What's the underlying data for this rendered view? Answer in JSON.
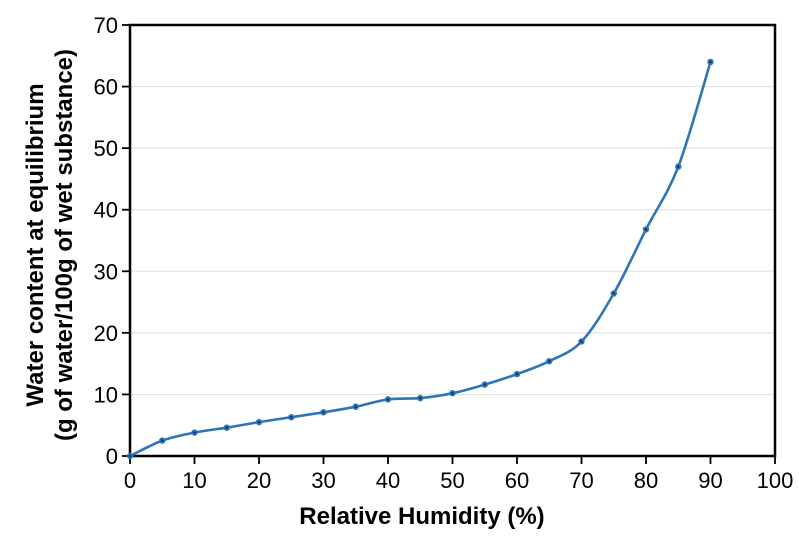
{
  "chart_data": {
    "type": "line",
    "title": "",
    "xlabel": "Relative Humidity (%)",
    "ylabel_line1": "Water content at equilibrium",
    "ylabel_line2": "(g of water/100g of wet substance)",
    "x": [
      0,
      5,
      10,
      15,
      20,
      25,
      30,
      35,
      40,
      45,
      50,
      55,
      60,
      65,
      70,
      75,
      80,
      85,
      90
    ],
    "series": [
      {
        "values": [
          0,
          2.5,
          3.8,
          4.6,
          5.5,
          6.3,
          7.1,
          8.0,
          9.2,
          9.4,
          10.2,
          11.6,
          13.3,
          15.4,
          18.6,
          26.4,
          36.8,
          47.0,
          64.0
        ]
      }
    ],
    "xlim": [
      0,
      100
    ],
    "ylim": [
      0,
      70
    ],
    "xticks": [
      0,
      10,
      20,
      30,
      40,
      50,
      60,
      70,
      80,
      90,
      100
    ],
    "yticks": [
      0,
      10,
      20,
      30,
      40,
      50,
      60,
      70
    ],
    "grid": "horizontal-only",
    "legend": "none",
    "line_smoothing": true,
    "marker": "circle",
    "colors": {
      "line": "#2E75B6",
      "marker": "#2E75B6",
      "marker_center": "#17375E",
      "gridline": "#E4E4E4",
      "axis_border": "#000000",
      "tick_label": "#000000",
      "background": "#FFFFFF"
    }
  }
}
